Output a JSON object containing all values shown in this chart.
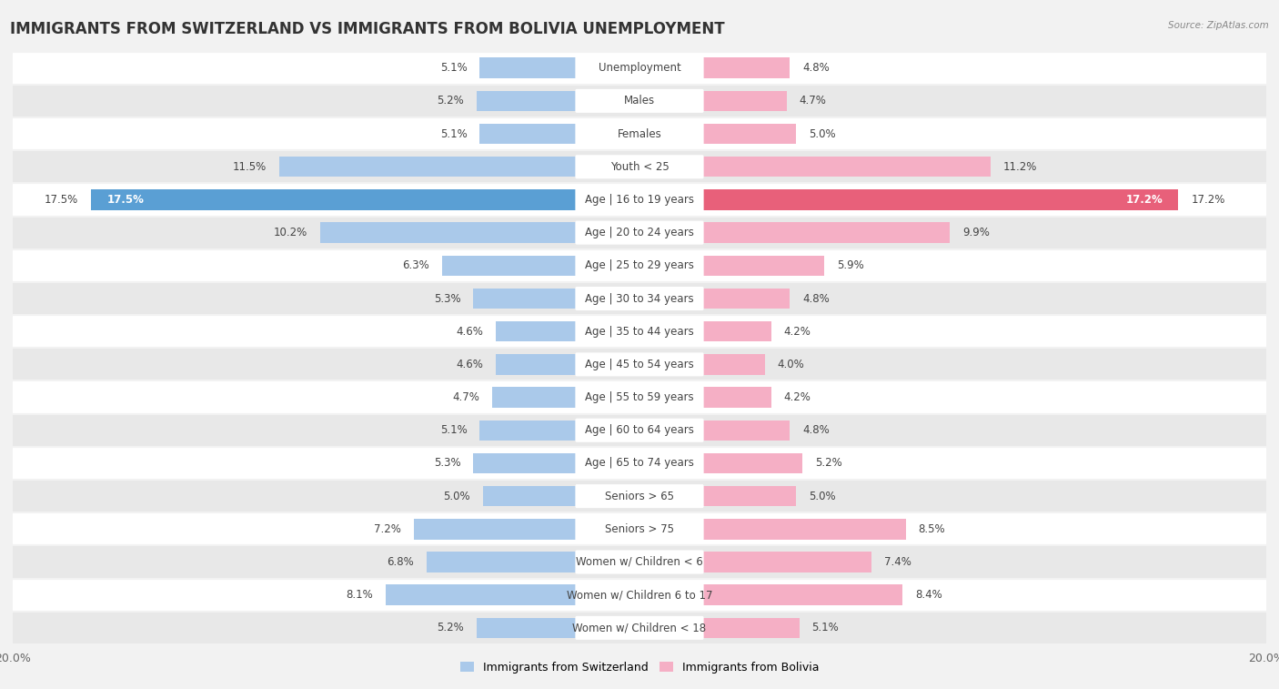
{
  "title": "IMMIGRANTS FROM SWITZERLAND VS IMMIGRANTS FROM BOLIVIA UNEMPLOYMENT",
  "source": "Source: ZipAtlas.com",
  "categories": [
    "Unemployment",
    "Males",
    "Females",
    "Youth < 25",
    "Age | 16 to 19 years",
    "Age | 20 to 24 years",
    "Age | 25 to 29 years",
    "Age | 30 to 34 years",
    "Age | 35 to 44 years",
    "Age | 45 to 54 years",
    "Age | 55 to 59 years",
    "Age | 60 to 64 years",
    "Age | 65 to 74 years",
    "Seniors > 65",
    "Seniors > 75",
    "Women w/ Children < 6",
    "Women w/ Children 6 to 17",
    "Women w/ Children < 18"
  ],
  "switzerland_values": [
    5.1,
    5.2,
    5.1,
    11.5,
    17.5,
    10.2,
    6.3,
    5.3,
    4.6,
    4.6,
    4.7,
    5.1,
    5.3,
    5.0,
    7.2,
    6.8,
    8.1,
    5.2
  ],
  "bolivia_values": [
    4.8,
    4.7,
    5.0,
    11.2,
    17.2,
    9.9,
    5.9,
    4.8,
    4.2,
    4.0,
    4.2,
    4.8,
    5.2,
    5.0,
    8.5,
    7.4,
    8.4,
    5.1
  ],
  "switzerland_color": "#aac9ea",
  "bolivia_color": "#f5afc5",
  "highlight_switzerland_color": "#5a9fd4",
  "highlight_bolivia_color": "#e8607a",
  "max_val": 20.0,
  "background_color": "#f2f2f2",
  "row_white_color": "#ffffff",
  "row_gray_color": "#e8e8e8",
  "label_bg_color": "#ffffff",
  "legend_switzerland": "Immigrants from Switzerland",
  "legend_bolivia": "Immigrants from Bolivia",
  "title_fontsize": 12,
  "label_fontsize": 8.5,
  "value_fontsize": 8.5,
  "highlight_rows": [
    "Age | 16 to 19 years",
    "Youth < 25",
    "Seniors > 75",
    "Women w/ Children < 6",
    "Women w/ Children 6 to 17"
  ]
}
